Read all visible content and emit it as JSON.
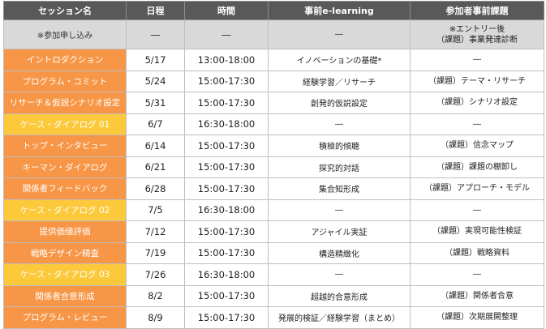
{
  "headers": {
    "session": "セッション名",
    "date": "日程",
    "time": "時間",
    "elearning": "事前e-learning",
    "task": "参加者事前課題"
  },
  "signup": {
    "session": "※参加申し込み",
    "date": "―",
    "time": "―",
    "elearning": "―",
    "task_line1": "※エントリー後",
    "task_line2": "（課題）事業発達診断"
  },
  "rows": [
    {
      "session": "イントロダクション",
      "date": "5/17",
      "time": "13:00-18:00",
      "elearning": "イノベーションの基礎*",
      "task": "―",
      "color": "orange"
    },
    {
      "session": "プログラム・コミット",
      "date": "5/24",
      "time": "15:00-17:30",
      "elearning": "経験学習／リサーチ",
      "task": "（課題）テーマ・リサーチ",
      "color": "orange"
    },
    {
      "session": "リサーチ＆仮説シナリオ設定",
      "date": "5/31",
      "time": "15:00-17:30",
      "elearning": "創発的仮説設定",
      "task": "（課題）シナリオ設定",
      "color": "orange"
    },
    {
      "session": "ケース・ダイアログ 01",
      "date": "6/7",
      "time": "16:30-18:00",
      "elearning": "―",
      "task": "―",
      "color": "yellow"
    },
    {
      "session": "トップ・インタビュー",
      "date": "6/14",
      "time": "15:00-17:30",
      "elearning": "積極的傾聴",
      "task": "（課題）信念マップ",
      "color": "orange"
    },
    {
      "session": "キーマン・ダイアログ",
      "date": "6/21",
      "time": "15:00-17:30",
      "elearning": "探究的対話",
      "task": "（課題）課題の棚卸し",
      "color": "orange"
    },
    {
      "session": "関係者フィードバック",
      "date": "6/28",
      "time": "15:00-17:30",
      "elearning": "集合知形成",
      "task": "（課題）アプローチ・モデル",
      "color": "orange"
    },
    {
      "session": "ケース・ダイアログ 02",
      "date": "7/5",
      "time": "16:30-18:00",
      "elearning": "―",
      "task": "―",
      "color": "yellow"
    },
    {
      "session": "提供価値評価",
      "date": "7/12",
      "time": "15:00-17:30",
      "elearning": "アジャイル実証",
      "task": "（課題）実現可能性検証",
      "color": "orange"
    },
    {
      "session": "戦略デザイン精査",
      "date": "7/19",
      "time": "15:00-17:30",
      "elearning": "構造精緻化",
      "task": "（課題）戦略資料",
      "color": "orange"
    },
    {
      "session": "ケース・ダイアログ 03",
      "date": "7/26",
      "time": "16:30-18:00",
      "elearning": "―",
      "task": "―",
      "color": "yellow"
    },
    {
      "session": "関係者合意形成",
      "date": "8/2",
      "time": "15:00-17:30",
      "elearning": "超越的合意形成",
      "task": "（課題）関係者合意",
      "color": "orange"
    },
    {
      "session": "プログラム・レビュー",
      "date": "8/9",
      "time": "15:00-17:30",
      "elearning": "発展的検証／経験学習（まとめ）",
      "task": "（課題）次期展開整理",
      "color": "orange"
    }
  ],
  "colors": {
    "header_bg": "#595959",
    "orange": "#f79646",
    "yellow": "#fcc93a",
    "grey": "#d9d9d9"
  }
}
